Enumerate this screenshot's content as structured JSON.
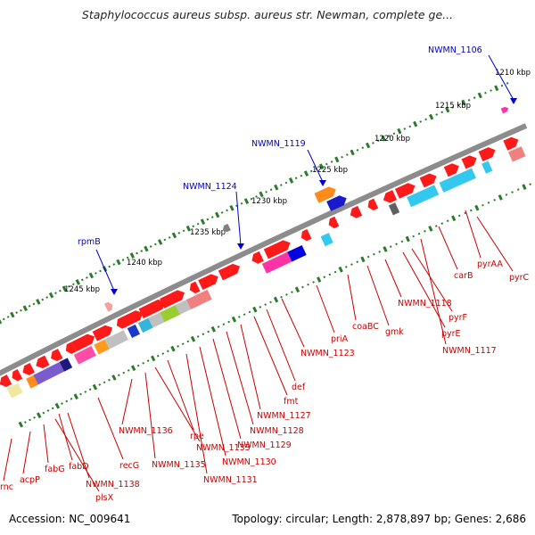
{
  "title": "Staphylococcus aureus subsp. aureus str. Newman, complete ge...",
  "footer": {
    "accession": "Accession: NC_009641",
    "summary": "Topology: circular; Length: 2,878,897 bp; Genes: 2,686"
  },
  "colors": {
    "backbone": "#8c8c8c",
    "blue_label": "#0000cc",
    "red_label": "#cc0000",
    "gene_red": "#ff1a1a",
    "tick_green": "#2a7a2a"
  },
  "kbp_labels": [
    "1210 kbp",
    "1215 kbp",
    "1220 kbp",
    "1225 kbp",
    "1230 kbp",
    "1235 kbp",
    "1240 kbp",
    "1245 kbp"
  ],
  "top_labels": [
    "NWMN_1106",
    "NWMN_1119",
    "NWMN_1124",
    "rpmB"
  ],
  "bottom_labels": [
    "pyrC",
    "pyrAA",
    "carB",
    "pyrF",
    "pyrE",
    "NWMN_1118",
    "NWMN_1117",
    "gmk",
    "coaBC",
    "priA",
    "NWMN_1123",
    "def",
    "fmt",
    "NWMN_1127",
    "NWMN_1128",
    "NWMN_1129",
    "NWMN_1130",
    "NWMN_1131",
    "rpe",
    "NWMN_1133",
    "NWMN_1135",
    "NWMN_1136",
    "recG",
    "NWMN_1138",
    "plsX",
    "fabD",
    "fabG",
    "acpP",
    "rnc"
  ]
}
